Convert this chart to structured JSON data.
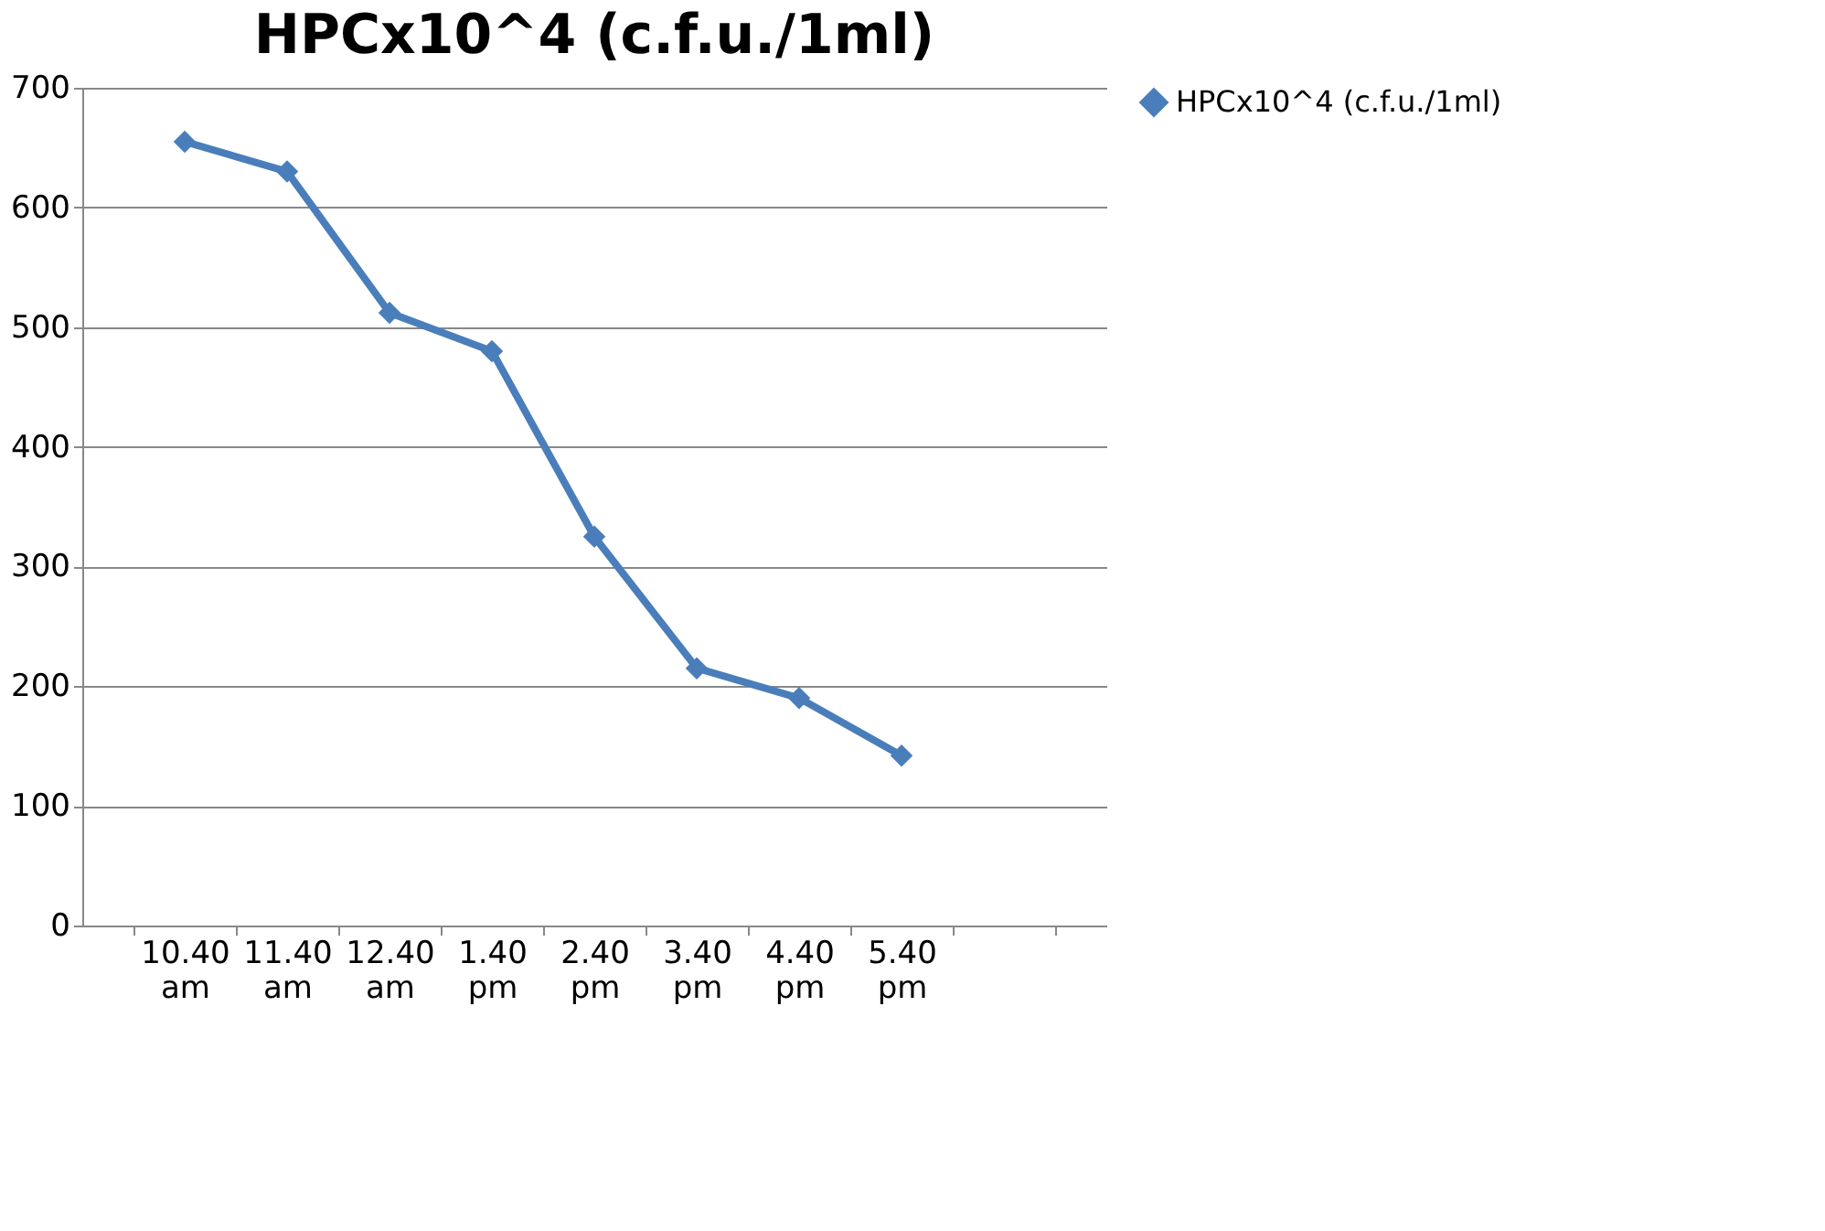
{
  "chart_data": {
    "type": "line",
    "title": "HPCx10^4 (c.f.u./1ml)",
    "categories": [
      "10.40 am",
      "11.40 am",
      "12.40 am",
      "1.40 pm",
      "2.40 pm",
      "3.40 pm",
      "4.40 pm",
      "5.40 pm",
      null
    ],
    "series": [
      {
        "name": "HPCx10^4 (c.f.u./1ml)",
        "color": "#4a7ebb",
        "values": [
          655,
          630,
          512,
          480,
          325,
          215,
          190,
          142,
          null
        ]
      }
    ],
    "ylim": [
      0,
      700
    ],
    "yticks": [
      0,
      100,
      200,
      300,
      400,
      500,
      600,
      700
    ],
    "grid": "y",
    "legend": "right",
    "marker": "diamond",
    "line_style": "solid"
  }
}
